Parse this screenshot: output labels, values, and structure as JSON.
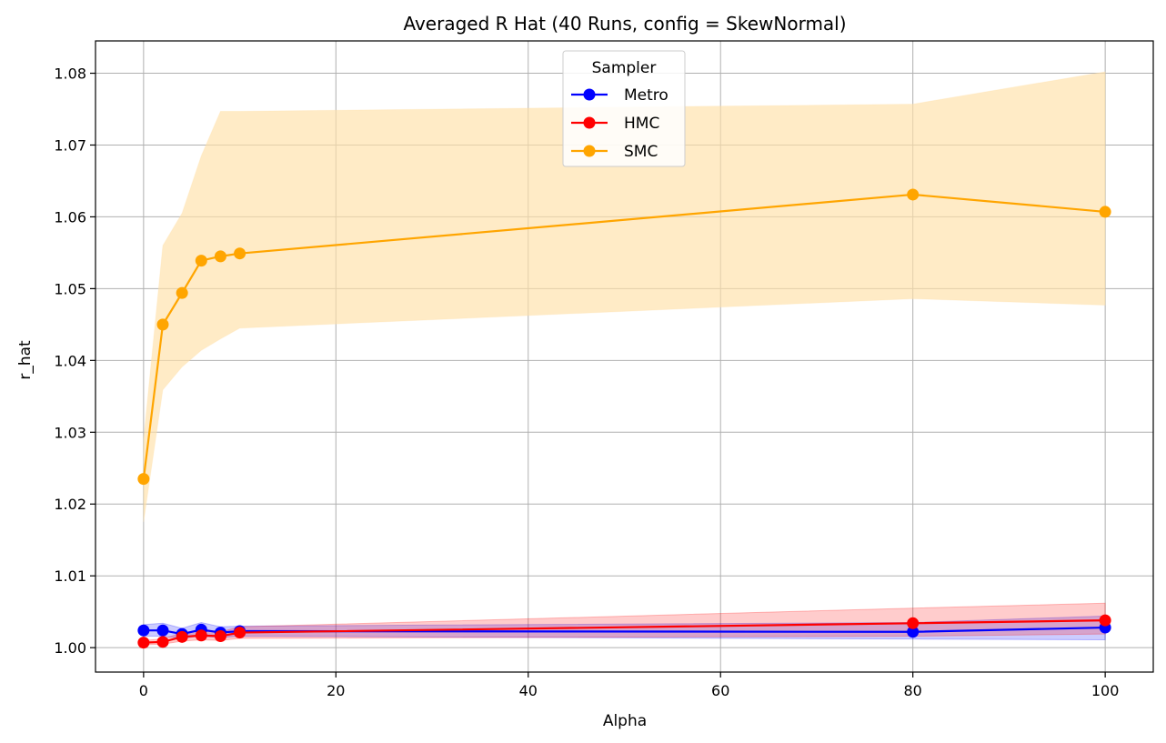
{
  "chart_data": {
    "type": "line",
    "title": "Averaged R Hat (40 Runs, config = SkewNormal)",
    "xlabel": "Alpha",
    "ylabel": "r_hat",
    "xlim": [
      -5,
      105
    ],
    "ylim": [
      0.9966,
      1.0845
    ],
    "xticks": [
      0,
      20,
      40,
      60,
      80,
      100
    ],
    "xtick_labels": [
      "0",
      "20",
      "40",
      "60",
      "80",
      "100"
    ],
    "yticks": [
      1.0,
      1.01,
      1.02,
      1.03,
      1.04,
      1.05,
      1.06,
      1.07,
      1.08
    ],
    "ytick_labels": [
      "1.00",
      "1.01",
      "1.02",
      "1.03",
      "1.04",
      "1.05",
      "1.06",
      "1.07",
      "1.08"
    ],
    "grid": true,
    "legend": {
      "title": "Sampler",
      "placement": "upper center"
    },
    "x": [
      0,
      2,
      4,
      6,
      8,
      10,
      80,
      100
    ],
    "series": [
      {
        "name": "Metro",
        "color": "#0000ff",
        "values": [
          1.0024,
          1.0024,
          1.0019,
          1.0025,
          1.0021,
          1.0023,
          1.0022,
          1.0028
        ],
        "band_upper": [
          1.0032,
          1.0034,
          1.0027,
          1.0035,
          1.0029,
          1.003,
          1.0035,
          1.0044
        ],
        "band_lower": [
          1.0016,
          1.0016,
          1.0013,
          1.0016,
          1.0014,
          1.0016,
          1.0012,
          1.0011
        ]
      },
      {
        "name": "HMC",
        "color": "#ff0000",
        "values": [
          1.0007,
          1.0008,
          1.0015,
          1.0017,
          1.0016,
          1.0021,
          1.0034,
          1.0038
        ],
        "band_upper": [
          1.001,
          1.0012,
          1.0021,
          1.0024,
          1.0022,
          1.0029,
          1.0055,
          1.0062
        ],
        "band_lower": [
          1.0004,
          1.0005,
          1.0009,
          1.0011,
          1.001,
          1.0013,
          1.0016,
          1.0019
        ]
      },
      {
        "name": "SMC",
        "color": "#ffa500",
        "band_color": "#ffe0a8",
        "values": [
          1.0235,
          1.045,
          1.0494,
          1.0539,
          1.0545,
          1.0549,
          1.0631,
          1.0607
        ],
        "band_upper": [
          1.029,
          1.056,
          1.0605,
          1.0685,
          1.0747,
          1.0747,
          1.0757,
          1.0802
        ],
        "band_lower": [
          1.0175,
          1.0359,
          1.0391,
          1.0414,
          1.043,
          1.0445,
          1.0486,
          1.0477
        ]
      }
    ]
  }
}
